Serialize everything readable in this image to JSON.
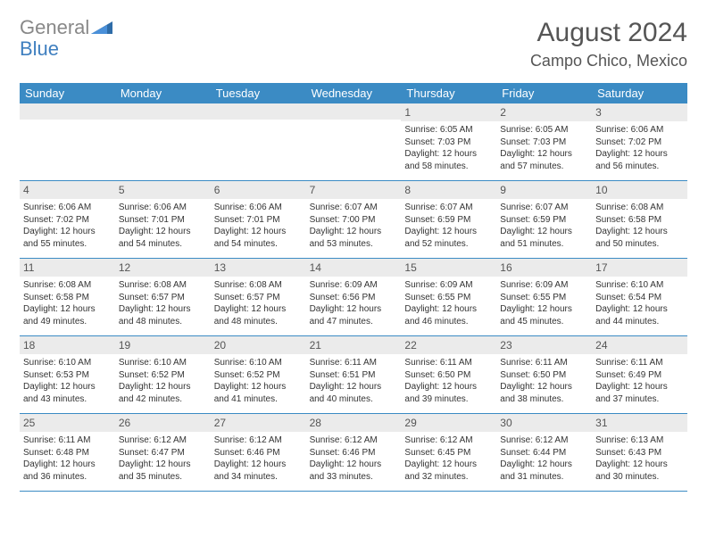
{
  "logo": {
    "text1": "General",
    "text2": "Blue"
  },
  "title": "August 2024",
  "location": "Campo Chico, Mexico",
  "colors": {
    "header_bg": "#3b8bc4",
    "header_text": "#ffffff",
    "daynum_bg": "#ebebeb",
    "border": "#3b8bc4",
    "text": "#333333",
    "logo_gray": "#888888",
    "logo_blue": "#3f7fbf"
  },
  "day_names": [
    "Sunday",
    "Monday",
    "Tuesday",
    "Wednesday",
    "Thursday",
    "Friday",
    "Saturday"
  ],
  "layout": {
    "columns": 7,
    "rows": 5,
    "font_size_body": 10,
    "font_size_header": 13,
    "font_size_title": 30,
    "font_size_location": 18
  },
  "weeks": [
    [
      {
        "empty": true
      },
      {
        "empty": true
      },
      {
        "empty": true
      },
      {
        "empty": true
      },
      {
        "day": "1",
        "sunrise": "Sunrise: 6:05 AM",
        "sunset": "Sunset: 7:03 PM",
        "daylight": "Daylight: 12 hours and 58 minutes."
      },
      {
        "day": "2",
        "sunrise": "Sunrise: 6:05 AM",
        "sunset": "Sunset: 7:03 PM",
        "daylight": "Daylight: 12 hours and 57 minutes."
      },
      {
        "day": "3",
        "sunrise": "Sunrise: 6:06 AM",
        "sunset": "Sunset: 7:02 PM",
        "daylight": "Daylight: 12 hours and 56 minutes."
      }
    ],
    [
      {
        "day": "4",
        "sunrise": "Sunrise: 6:06 AM",
        "sunset": "Sunset: 7:02 PM",
        "daylight": "Daylight: 12 hours and 55 minutes."
      },
      {
        "day": "5",
        "sunrise": "Sunrise: 6:06 AM",
        "sunset": "Sunset: 7:01 PM",
        "daylight": "Daylight: 12 hours and 54 minutes."
      },
      {
        "day": "6",
        "sunrise": "Sunrise: 6:06 AM",
        "sunset": "Sunset: 7:01 PM",
        "daylight": "Daylight: 12 hours and 54 minutes."
      },
      {
        "day": "7",
        "sunrise": "Sunrise: 6:07 AM",
        "sunset": "Sunset: 7:00 PM",
        "daylight": "Daylight: 12 hours and 53 minutes."
      },
      {
        "day": "8",
        "sunrise": "Sunrise: 6:07 AM",
        "sunset": "Sunset: 6:59 PM",
        "daylight": "Daylight: 12 hours and 52 minutes."
      },
      {
        "day": "9",
        "sunrise": "Sunrise: 6:07 AM",
        "sunset": "Sunset: 6:59 PM",
        "daylight": "Daylight: 12 hours and 51 minutes."
      },
      {
        "day": "10",
        "sunrise": "Sunrise: 6:08 AM",
        "sunset": "Sunset: 6:58 PM",
        "daylight": "Daylight: 12 hours and 50 minutes."
      }
    ],
    [
      {
        "day": "11",
        "sunrise": "Sunrise: 6:08 AM",
        "sunset": "Sunset: 6:58 PM",
        "daylight": "Daylight: 12 hours and 49 minutes."
      },
      {
        "day": "12",
        "sunrise": "Sunrise: 6:08 AM",
        "sunset": "Sunset: 6:57 PM",
        "daylight": "Daylight: 12 hours and 48 minutes."
      },
      {
        "day": "13",
        "sunrise": "Sunrise: 6:08 AM",
        "sunset": "Sunset: 6:57 PM",
        "daylight": "Daylight: 12 hours and 48 minutes."
      },
      {
        "day": "14",
        "sunrise": "Sunrise: 6:09 AM",
        "sunset": "Sunset: 6:56 PM",
        "daylight": "Daylight: 12 hours and 47 minutes."
      },
      {
        "day": "15",
        "sunrise": "Sunrise: 6:09 AM",
        "sunset": "Sunset: 6:55 PM",
        "daylight": "Daylight: 12 hours and 46 minutes."
      },
      {
        "day": "16",
        "sunrise": "Sunrise: 6:09 AM",
        "sunset": "Sunset: 6:55 PM",
        "daylight": "Daylight: 12 hours and 45 minutes."
      },
      {
        "day": "17",
        "sunrise": "Sunrise: 6:10 AM",
        "sunset": "Sunset: 6:54 PM",
        "daylight": "Daylight: 12 hours and 44 minutes."
      }
    ],
    [
      {
        "day": "18",
        "sunrise": "Sunrise: 6:10 AM",
        "sunset": "Sunset: 6:53 PM",
        "daylight": "Daylight: 12 hours and 43 minutes."
      },
      {
        "day": "19",
        "sunrise": "Sunrise: 6:10 AM",
        "sunset": "Sunset: 6:52 PM",
        "daylight": "Daylight: 12 hours and 42 minutes."
      },
      {
        "day": "20",
        "sunrise": "Sunrise: 6:10 AM",
        "sunset": "Sunset: 6:52 PM",
        "daylight": "Daylight: 12 hours and 41 minutes."
      },
      {
        "day": "21",
        "sunrise": "Sunrise: 6:11 AM",
        "sunset": "Sunset: 6:51 PM",
        "daylight": "Daylight: 12 hours and 40 minutes."
      },
      {
        "day": "22",
        "sunrise": "Sunrise: 6:11 AM",
        "sunset": "Sunset: 6:50 PM",
        "daylight": "Daylight: 12 hours and 39 minutes."
      },
      {
        "day": "23",
        "sunrise": "Sunrise: 6:11 AM",
        "sunset": "Sunset: 6:50 PM",
        "daylight": "Daylight: 12 hours and 38 minutes."
      },
      {
        "day": "24",
        "sunrise": "Sunrise: 6:11 AM",
        "sunset": "Sunset: 6:49 PM",
        "daylight": "Daylight: 12 hours and 37 minutes."
      }
    ],
    [
      {
        "day": "25",
        "sunrise": "Sunrise: 6:11 AM",
        "sunset": "Sunset: 6:48 PM",
        "daylight": "Daylight: 12 hours and 36 minutes."
      },
      {
        "day": "26",
        "sunrise": "Sunrise: 6:12 AM",
        "sunset": "Sunset: 6:47 PM",
        "daylight": "Daylight: 12 hours and 35 minutes."
      },
      {
        "day": "27",
        "sunrise": "Sunrise: 6:12 AM",
        "sunset": "Sunset: 6:46 PM",
        "daylight": "Daylight: 12 hours and 34 minutes."
      },
      {
        "day": "28",
        "sunrise": "Sunrise: 6:12 AM",
        "sunset": "Sunset: 6:46 PM",
        "daylight": "Daylight: 12 hours and 33 minutes."
      },
      {
        "day": "29",
        "sunrise": "Sunrise: 6:12 AM",
        "sunset": "Sunset: 6:45 PM",
        "daylight": "Daylight: 12 hours and 32 minutes."
      },
      {
        "day": "30",
        "sunrise": "Sunrise: 6:12 AM",
        "sunset": "Sunset: 6:44 PM",
        "daylight": "Daylight: 12 hours and 31 minutes."
      },
      {
        "day": "31",
        "sunrise": "Sunrise: 6:13 AM",
        "sunset": "Sunset: 6:43 PM",
        "daylight": "Daylight: 12 hours and 30 minutes."
      }
    ]
  ]
}
